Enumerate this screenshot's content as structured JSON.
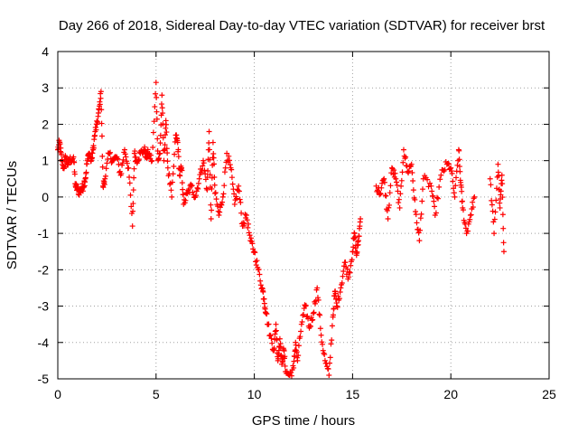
{
  "chart_data": {
    "type": "scatter",
    "title": "Day 266 of 2018, Sidereal Day-to-day VTEC variation (SDTVAR) for receiver brst",
    "xlabel": "GPS time / hours",
    "ylabel": "SDTVAR / TECUs",
    "xlim": [
      0,
      25
    ],
    "ylim": [
      -5,
      4
    ],
    "xticks": [
      "0",
      "5",
      "10",
      "15",
      "20",
      "25"
    ],
    "yticks": [
      "-5",
      "-4",
      "-3",
      "-2",
      "-1",
      "0",
      "1",
      "2",
      "3",
      "4"
    ],
    "grid": true,
    "marker": "plus",
    "color": "#ff0000",
    "series": [
      {
        "name": "SDTVAR",
        "anchors": [
          [
            0.0,
            1.3
          ],
          [
            0.1,
            1.5
          ],
          [
            0.2,
            1.0
          ],
          [
            0.3,
            0.8
          ],
          [
            0.4,
            1.1
          ],
          [
            0.5,
            0.9
          ],
          [
            0.6,
            1.0
          ],
          [
            0.8,
            1.1
          ],
          [
            0.9,
            0.3
          ],
          [
            1.0,
            0.2
          ],
          [
            1.1,
            0.15
          ],
          [
            1.2,
            0.2
          ],
          [
            1.3,
            0.3
          ],
          [
            1.4,
            0.5
          ],
          [
            1.5,
            1.0
          ],
          [
            1.6,
            1.2
          ],
          [
            1.7,
            1.0
          ],
          [
            1.8,
            1.3
          ],
          [
            1.9,
            1.8
          ],
          [
            2.0,
            2.0
          ],
          [
            2.1,
            2.4
          ],
          [
            2.2,
            2.9
          ],
          [
            2.3,
            0.3
          ],
          [
            2.4,
            0.5
          ],
          [
            2.6,
            1.2
          ],
          [
            2.8,
            1.0
          ],
          [
            3.0,
            1.1
          ],
          [
            3.2,
            0.6
          ],
          [
            3.4,
            1.3
          ],
          [
            3.6,
            0.8
          ],
          [
            3.8,
            -0.8
          ],
          [
            3.9,
            1.2
          ],
          [
            4.0,
            1.0
          ],
          [
            4.2,
            1.2
          ],
          [
            4.4,
            1.3
          ],
          [
            4.5,
            1.1
          ],
          [
            4.6,
            1.2
          ],
          [
            4.8,
            1.0
          ],
          [
            5.0,
            3.15
          ],
          [
            5.1,
            1.0
          ],
          [
            5.2,
            1.2
          ],
          [
            5.3,
            2.8
          ],
          [
            5.4,
            1.0
          ],
          [
            5.5,
            2.1
          ],
          [
            5.6,
            0.8
          ],
          [
            5.8,
            0.0
          ],
          [
            6.0,
            1.7
          ],
          [
            6.1,
            1.5
          ],
          [
            6.2,
            0.6
          ],
          [
            6.3,
            0.8
          ],
          [
            6.4,
            -0.2
          ],
          [
            6.6,
            0.1
          ],
          [
            6.8,
            0.3
          ],
          [
            7.0,
            0.0
          ],
          [
            7.2,
            0.5
          ],
          [
            7.4,
            1.0
          ],
          [
            7.6,
            0.2
          ],
          [
            7.7,
            1.8
          ],
          [
            7.8,
            -0.6
          ],
          [
            7.9,
            1.5
          ],
          [
            8.0,
            0.1
          ],
          [
            8.2,
            -0.5
          ],
          [
            8.4,
            0.0
          ],
          [
            8.6,
            1.2
          ],
          [
            8.8,
            0.8
          ],
          [
            9.0,
            -0.2
          ],
          [
            9.2,
            0.3
          ],
          [
            9.4,
            -0.8
          ],
          [
            9.6,
            -0.5
          ],
          [
            9.8,
            -1.2
          ],
          [
            10.0,
            -1.5
          ],
          [
            10.2,
            -2.0
          ],
          [
            10.4,
            -2.5
          ],
          [
            10.5,
            -2.8
          ],
          [
            10.6,
            -3.2
          ],
          [
            10.8,
            -3.8
          ],
          [
            11.0,
            -4.2
          ],
          [
            11.1,
            -3.5
          ],
          [
            11.2,
            -4.5
          ],
          [
            11.3,
            -3.9
          ],
          [
            11.4,
            -4.6
          ],
          [
            11.5,
            -4.2
          ],
          [
            11.6,
            -4.8
          ],
          [
            11.8,
            -4.9
          ],
          [
            12.0,
            -4.7
          ],
          [
            12.1,
            -4.0
          ],
          [
            12.2,
            -4.5
          ],
          [
            12.4,
            -3.5
          ],
          [
            12.6,
            -3.0
          ],
          [
            12.8,
            -3.6
          ],
          [
            13.0,
            -3.2
          ],
          [
            13.2,
            -2.5
          ],
          [
            13.4,
            -3.8
          ],
          [
            13.6,
            -4.5
          ],
          [
            13.8,
            -4.9
          ],
          [
            14.0,
            -3.3
          ],
          [
            14.1,
            -2.6
          ],
          [
            14.2,
            -3.0
          ],
          [
            14.4,
            -2.5
          ],
          [
            14.6,
            -1.8
          ],
          [
            14.8,
            -2.2
          ],
          [
            15.0,
            -1.5
          ],
          [
            15.1,
            -1.0
          ],
          [
            15.2,
            -1.6
          ],
          [
            15.3,
            -1.2
          ],
          [
            15.4,
            -0.6
          ],
          [
            16.2,
            0.3
          ],
          [
            16.4,
            0.1
          ],
          [
            16.6,
            0.5
          ],
          [
            16.8,
            -0.6
          ],
          [
            17.0,
            0.8
          ],
          [
            17.2,
            0.5
          ],
          [
            17.4,
            -0.3
          ],
          [
            17.6,
            1.3
          ],
          [
            17.8,
            0.7
          ],
          [
            18.0,
            0.9
          ],
          [
            18.2,
            -0.4
          ],
          [
            18.4,
            -1.2
          ],
          [
            18.6,
            0.5
          ],
          [
            19.0,
            0.3
          ],
          [
            19.2,
            -0.5
          ],
          [
            19.5,
            0.6
          ],
          [
            19.8,
            0.9
          ],
          [
            20.0,
            0.8
          ],
          [
            20.2,
            0.0
          ],
          [
            20.4,
            1.3
          ],
          [
            20.5,
            0.4
          ],
          [
            20.6,
            -0.3
          ],
          [
            20.8,
            -1.0
          ],
          [
            21.0,
            -0.5
          ],
          [
            21.2,
            0.0
          ],
          [
            22.0,
            0.5
          ],
          [
            22.2,
            -1.0
          ],
          [
            22.4,
            0.9
          ],
          [
            22.5,
            -0.3
          ],
          [
            22.6,
            0.6
          ],
          [
            22.7,
            -1.5
          ]
        ]
      }
    ]
  }
}
